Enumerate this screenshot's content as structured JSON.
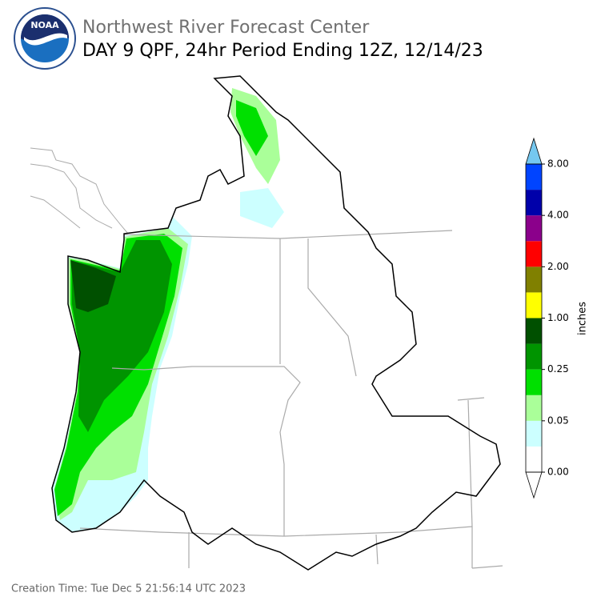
{
  "header": {
    "logo_text": "NOAA",
    "org": "Northwest River Forecast Center",
    "title": "DAY 9 QPF, 24hr Period Ending 12Z, 12/14/23"
  },
  "colorbar": {
    "label": "inches",
    "ticks": [
      {
        "value": 0,
        "label": "0.00"
      },
      {
        "value": 0.05,
        "label": "0.05"
      },
      {
        "value": 0.25,
        "label": "0.25"
      },
      {
        "value": 1,
        "label": "1.00"
      },
      {
        "value": 2,
        "label": "2.00"
      },
      {
        "value": 4,
        "label": "4.00"
      },
      {
        "value": 8,
        "label": "8.00"
      }
    ],
    "colors": [
      "#ffffff",
      "#ccffff",
      "#aaff99",
      "#00e000",
      "#009400",
      "#005000",
      "#ffff00",
      "#808000",
      "#ff0000",
      "#8b008b",
      "#0000aa",
      "#0044ff"
    ],
    "over_color": "#75c8f0",
    "under_color": "#ffffff"
  },
  "footer": {
    "creation_time": "Creation Time: Tue Dec 5 21:56:14 UTC 2023"
  }
}
